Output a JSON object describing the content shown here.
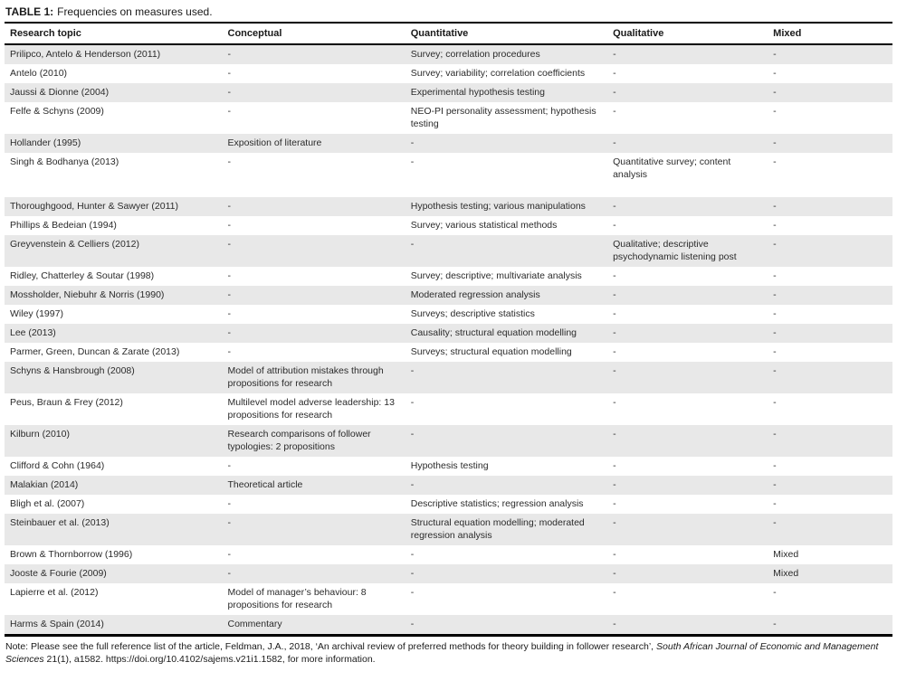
{
  "title": {
    "label": "TABLE 1:",
    "caption": "Frequencies on measures used."
  },
  "table": {
    "columns": [
      "Research topic",
      "Conceptual",
      "Quantitative",
      "Qualitative",
      "Mixed"
    ],
    "rows": [
      {
        "topic": "Prilipco, Antelo & Henderson (2011)",
        "conceptual": "-",
        "quantitative": "Survey; correlation procedures",
        "qualitative": "-",
        "mixed": "-"
      },
      {
        "topic": "Antelo (2010)",
        "conceptual": "-",
        "quantitative": "Survey; variability; correlation coefficients",
        "qualitative": "-",
        "mixed": "-"
      },
      {
        "topic": "Jaussi & Dionne (2004)",
        "conceptual": "-",
        "quantitative": "Experimental hypothesis testing",
        "qualitative": "-",
        "mixed": "-"
      },
      {
        "topic": "Felfe & Schyns (2009)",
        "conceptual": "-",
        "quantitative": "NEO-PI personality assessment; hypothesis testing",
        "qualitative": "-",
        "mixed": "-"
      },
      {
        "topic": "Hollander (1995)",
        "conceptual": "Exposition of literature",
        "quantitative": "-",
        "qualitative": "-",
        "mixed": "-"
      },
      {
        "topic": "Singh & Bodhanya (2013)",
        "conceptual": "-",
        "quantitative": "-",
        "qualitative": "Quantitative survey; content analysis",
        "mixed": "-"
      },
      {
        "topic": "Thoroughgood, Hunter & Sawyer (2011)",
        "conceptual": "-",
        "quantitative": "Hypothesis testing; various manipulations",
        "qualitative": "-",
        "mixed": "-"
      },
      {
        "topic": "Phillips & Bedeian (1994)",
        "conceptual": "-",
        "quantitative": "Survey; various statistical methods",
        "qualitative": "-",
        "mixed": "-"
      },
      {
        "topic": "Greyvenstein & Celliers (2012)",
        "conceptual": "-",
        "quantitative": "-",
        "qualitative": "Qualitative; descriptive psychodynamic listening post",
        "mixed": "-"
      },
      {
        "topic": "Ridley, Chatterley & Soutar (1998)",
        "conceptual": "-",
        "quantitative": "Survey; descriptive; multivariate analysis",
        "qualitative": "-",
        "mixed": "-"
      },
      {
        "topic": "Mossholder, Niebuhr & Norris (1990)",
        "conceptual": "-",
        "quantitative": "Moderated regression analysis",
        "qualitative": "-",
        "mixed": "-"
      },
      {
        "topic": "Wiley (1997)",
        "conceptual": "-",
        "quantitative": "Surveys; descriptive statistics",
        "qualitative": "-",
        "mixed": "-"
      },
      {
        "topic": "Lee (2013)",
        "conceptual": "-",
        "quantitative": "Causality; structural equation modelling",
        "qualitative": "-",
        "mixed": "-"
      },
      {
        "topic": "Parmer, Green, Duncan & Zarate (2013)",
        "conceptual": "-",
        "quantitative": "Surveys; structural equation modelling",
        "qualitative": "-",
        "mixed": "-"
      },
      {
        "topic": "Schyns & Hansbrough (2008)",
        "conceptual": "Model of attribution mistakes through propositions for research",
        "quantitative": "-",
        "qualitative": "-",
        "mixed": "-"
      },
      {
        "topic": "Peus, Braun & Frey (2012)",
        "conceptual": "Multilevel model adverse leadership: 13 propositions for research",
        "quantitative": "-",
        "qualitative": "-",
        "mixed": "-"
      },
      {
        "topic": "Kilburn (2010)",
        "conceptual": "Research comparisons of follower typologies: 2 propositions",
        "quantitative": "-",
        "qualitative": "-",
        "mixed": "-"
      },
      {
        "topic": "Clifford & Cohn (1964)",
        "conceptual": "-",
        "quantitative": "Hypothesis testing",
        "qualitative": "-",
        "mixed": "-"
      },
      {
        "topic": "Malakian (2014)",
        "conceptual": "Theoretical article",
        "quantitative": "-",
        "qualitative": "-",
        "mixed": "-"
      },
      {
        "topic": "Bligh et al. (2007)",
        "conceptual": "-",
        "quantitative": "Descriptive statistics; regression analysis",
        "qualitative": "-",
        "mixed": "-"
      },
      {
        "topic": "Steinbauer et al. (2013)",
        "conceptual": "-",
        "quantitative": "Structural equation modelling; moderated regression analysis",
        "qualitative": "-",
        "mixed": "-"
      },
      {
        "topic": "Brown & Thornborrow (1996)",
        "conceptual": "-",
        "quantitative": "-",
        "qualitative": "-",
        "mixed": "Mixed"
      },
      {
        "topic": "Jooste & Fourie (2009)",
        "conceptual": "-",
        "quantitative": "-",
        "qualitative": "-",
        "mixed": "Mixed"
      },
      {
        "topic": "Lapierre et al. (2012)",
        "conceptual": "Model of manager’s behaviour: 8 propositions for research",
        "quantitative": "-",
        "qualitative": "-",
        "mixed": "-"
      },
      {
        "topic": "Harms & Spain (2014)",
        "conceptual": "Commentary",
        "quantitative": "-",
        "qualitative": "-",
        "mixed": "-"
      }
    ]
  },
  "note": {
    "part1": "Note: Please see the full reference list of the article, Feldman, J.A., 2018, ‘An archival review of preferred methods for theory building in follower research’, ",
    "italic": "South African Journal of Economic and Management Sciences",
    "part2": " 21(1), a1582. https://doi.org/10.4102/sajems.v21i1.1582, for more information."
  }
}
